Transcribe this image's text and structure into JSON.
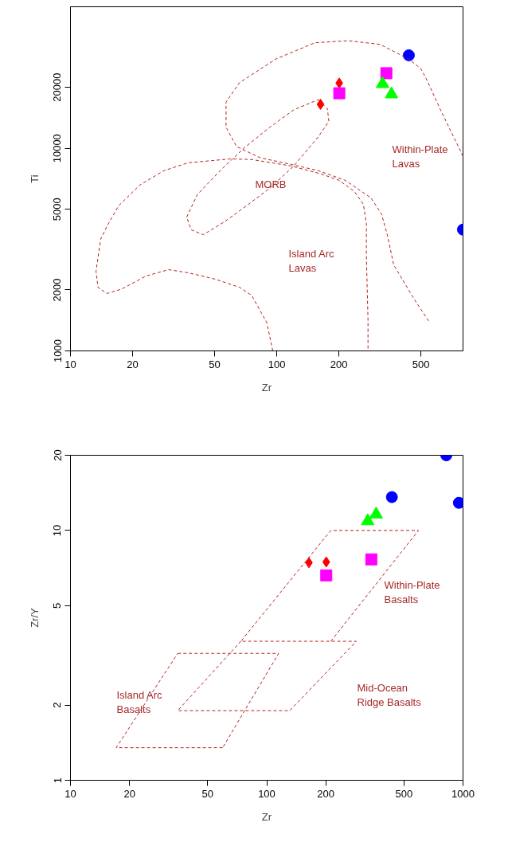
{
  "chart_data": [
    {
      "type": "scatter",
      "xlabel": "Zr",
      "ylabel": "Ti",
      "log": "xy",
      "xlim": [
        10,
        800
      ],
      "ylim": [
        1000,
        50000
      ],
      "xticks": [
        10,
        20,
        50,
        100,
        200,
        500
      ],
      "yticks": [
        1000,
        2000,
        5000,
        10000,
        20000
      ],
      "series": [
        {
          "marker": "diamond",
          "color": "#ff0000",
          "x": [
            163,
            201
          ],
          "values": [
            16500,
            21000
          ]
        },
        {
          "marker": "square",
          "color": "#ff00ff",
          "x": [
            201,
            340
          ],
          "values": [
            18700,
            23500
          ]
        },
        {
          "marker": "triangle",
          "color": "#00ff00",
          "x": [
            326,
            360
          ],
          "values": [
            20800,
            18500
          ]
        },
        {
          "marker": "circle",
          "color": "#0000ff",
          "x": [
            437,
            800
          ],
          "values": [
            28800,
            3970
          ]
        },
        {
          "type": "line",
          "line_style": "dashed",
          "color": "#b22222",
          "x": [
            800,
            622,
            534,
            499,
            436,
            317,
            222,
            153,
            99,
            66,
            56.8,
            56.8,
            63.9,
            83.6,
            117,
            159,
            215,
            286,
            322,
            345,
            369,
            467,
            552
          ],
          "values": [
            9140,
            15500,
            21800,
            24800,
            27600,
            32600,
            34000,
            33200,
            27600,
            21100,
            16900,
            12700,
            10200,
            8970,
            8340,
            7760,
            6950,
            5700,
            4750,
            3680,
            2660,
            1780,
            1380
          ]
        },
        {
          "type": "line",
          "line_style": "dashed",
          "color": "#b22222",
          "x": [
            95.7,
            89.5,
            75.6,
            66,
            50.4,
            37.2,
            29.9,
            23.2,
            17.7,
            15.0,
            13.6,
            13.3,
            14.0,
            15.0,
            17.1,
            21.7,
            28.4,
            37.2,
            59.7,
            75.6,
            117,
            164,
            201,
            238,
            263,
            272,
            272,
            277,
            277
          ],
          "values": [
            1000,
            1380,
            1880,
            2060,
            2260,
            2430,
            2520,
            2340,
            2020,
            1920,
            2060,
            2470,
            3550,
            4110,
            5200,
            6590,
            7760,
            8490,
            8870,
            8810,
            8190,
            7480,
            6950,
            6120,
            5300,
            4260,
            2960,
            1430,
            1000
          ]
        },
        {
          "type": "line",
          "line_style": "dashed",
          "color": "#b22222",
          "x": [
            159,
            176,
            179,
            159,
            121,
            92.5,
            73.1,
            55.8,
            44.1,
            38.5,
            36.6
          ],
          "values": [
            17400,
            15700,
            13600,
            11400,
            8190,
            6350,
            5300,
            4340,
            3750,
            3960,
            4580
          ]
        },
        {
          "type": "line",
          "line_style": "dashed",
          "color": "#b22222",
          "x": [
            36.6,
            41.2,
            54.0,
            70.7,
            92.5,
            121,
            159
          ],
          "values": [
            4580,
            5910,
            7890,
            10200,
            12700,
            15500,
            17400
          ]
        }
      ],
      "annotations": [
        "Within-Plate\nLavas",
        "MORB",
        "Island Arc\nLavas"
      ]
    },
    {
      "type": "scatter",
      "xlabel": "Zr",
      "ylabel": "Zr/Y",
      "log": "xy",
      "xlim": [
        10,
        1000
      ],
      "ylim": [
        1,
        20
      ],
      "xticks": [
        10,
        20,
        50,
        100,
        200,
        500,
        1000
      ],
      "yticks": [
        1,
        2,
        5,
        10,
        20
      ],
      "series": [
        {
          "marker": "diamond",
          "color": "#ff0000",
          "x": [
            164,
            201
          ],
          "values": [
            7.43,
            7.48
          ]
        },
        {
          "marker": "square",
          "color": "#ff00ff",
          "x": [
            201,
            341
          ],
          "values": [
            6.61,
            7.66
          ]
        },
        {
          "marker": "triangle",
          "color": "#00ff00",
          "x": [
            327,
            361
          ],
          "values": [
            10.9,
            11.6
          ]
        },
        {
          "marker": "circle",
          "color": "#0000ff",
          "x": [
            434,
            953,
            822
          ],
          "values": [
            13.6,
            12.9,
            20
          ]
        },
        {
          "type": "line",
          "line_style": "dashed",
          "color": "#b22222",
          "x": [
            212,
            593,
            212,
            73.8,
            286,
            131,
            35.2,
            73.8
          ],
          "values": [
            3.6,
            10,
            10,
            3.6,
            3.6,
            1.9,
            1.9,
            3.6
          ]
        },
        {
          "type": "line",
          "line_style": "dashed",
          "color": "#b22222",
          "x": [
            35.2,
            115,
            59.6
          ],
          "values": [
            3.22,
            3.22,
            1.35
          ]
        },
        {
          "type": "line",
          "line_style": "dashed",
          "color": "#b22222",
          "x": [
            59.6,
            17.1,
            35.2
          ],
          "values": [
            1.35,
            1.35,
            3.22
          ]
        }
      ],
      "annotations": [
        "Island Arc\nBasalts",
        "Mid-Ocean\nRidge Basalts",
        "Within-Plate\nBasalts"
      ]
    }
  ]
}
